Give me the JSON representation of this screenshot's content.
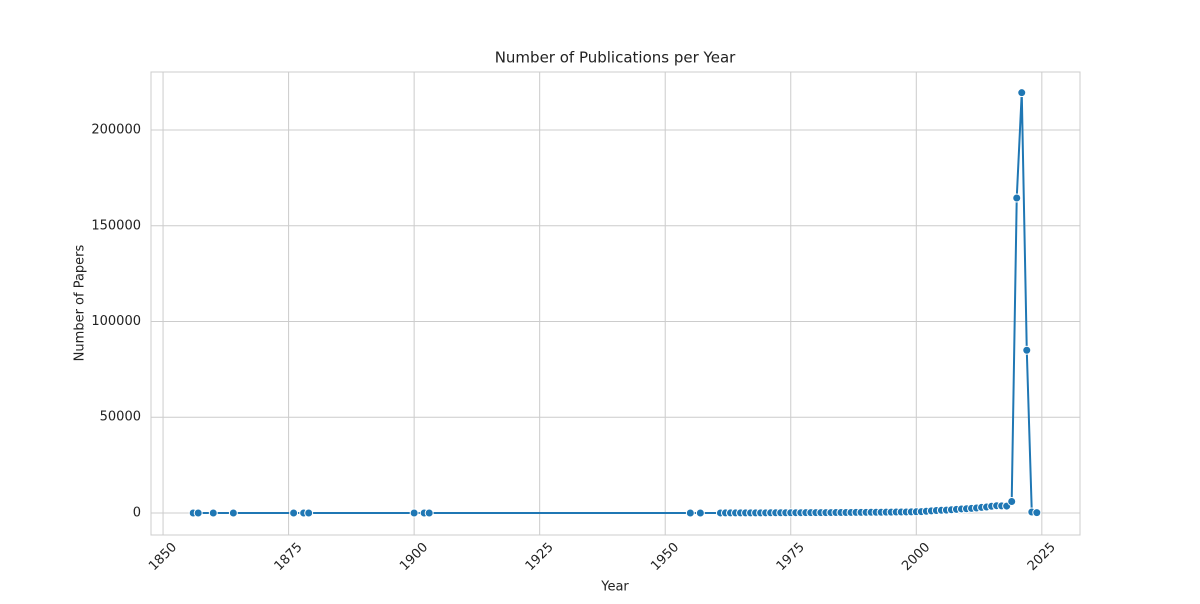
{
  "chart_data": {
    "type": "line",
    "title": "Number of Publications per Year",
    "x_label": "Year",
    "y_label": "Number of Papers",
    "x": [
      1856,
      1857,
      1860,
      1864,
      1876,
      1878,
      1879,
      1900,
      1902,
      1903,
      1955,
      1957,
      1961,
      1962,
      1963,
      1964,
      1965,
      1966,
      1967,
      1968,
      1969,
      1970,
      1971,
      1972,
      1973,
      1974,
      1975,
      1976,
      1977,
      1978,
      1979,
      1980,
      1981,
      1982,
      1983,
      1984,
      1985,
      1986,
      1987,
      1988,
      1989,
      1990,
      1991,
      1992,
      1993,
      1994,
      1995,
      1996,
      1997,
      1998,
      1999,
      2000,
      2001,
      2002,
      2003,
      2004,
      2005,
      2006,
      2007,
      2008,
      2009,
      2010,
      2011,
      2012,
      2013,
      2014,
      2015,
      2016,
      2017,
      2018,
      2019,
      2020,
      2021,
      2022,
      2023,
      2024
    ],
    "series": [
      {
        "name": "Papers",
        "color": "#1f77b4",
        "values": [
          1,
          1,
          1,
          1,
          1,
          1,
          1,
          2,
          1,
          1,
          3,
          2,
          20,
          25,
          30,
          35,
          40,
          45,
          50,
          60,
          70,
          80,
          90,
          100,
          110,
          120,
          130,
          140,
          150,
          160,
          170,
          180,
          190,
          200,
          210,
          220,
          240,
          260,
          280,
          300,
          320,
          340,
          360,
          380,
          400,
          420,
          450,
          480,
          510,
          540,
          580,
          620,
          700,
          900,
          1100,
          1300,
          1400,
          1500,
          1700,
          1900,
          2100,
          2200,
          2400,
          2600,
          2900,
          3100,
          3500,
          3800,
          3700,
          3600,
          6000,
          164500,
          219500,
          85000,
          500,
          200
        ]
      }
    ],
    "xlim": [
      1847.6,
      2032.6
    ],
    "ylim": [
      -11500,
      230300
    ],
    "xticks": [
      1850,
      1875,
      1900,
      1925,
      1950,
      1975,
      2000,
      2025
    ],
    "yticks": [
      0,
      50000,
      100000,
      150000,
      200000
    ],
    "grid": true
  }
}
